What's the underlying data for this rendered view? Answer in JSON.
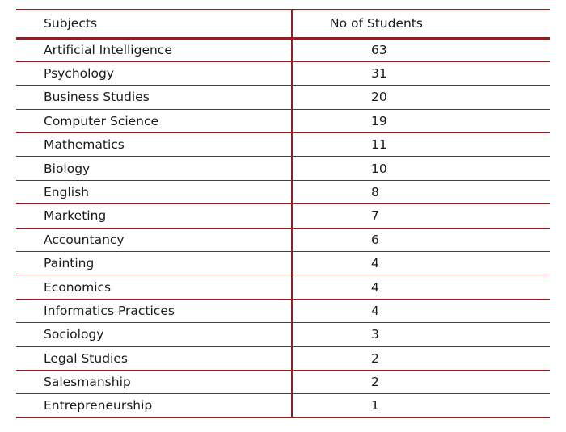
{
  "table": {
    "headers": [
      "Subjects",
      "No of Students"
    ],
    "rows": [
      {
        "subject": "Artificial Intelligence",
        "students": "63"
      },
      {
        "subject": "Psychology",
        "students": "31"
      },
      {
        "subject": "Business Studies",
        "students": "20"
      },
      {
        "subject": "Computer Science",
        "students": "19"
      },
      {
        "subject": "Mathematics",
        "students": "11"
      },
      {
        "subject": "Biology",
        "students": "10"
      },
      {
        "subject": "English",
        "students": "8"
      },
      {
        "subject": "Marketing",
        "students": "7"
      },
      {
        "subject": "Accountancy",
        "students": "6"
      },
      {
        "subject": "Painting",
        "students": "4"
      },
      {
        "subject": "Economics",
        "students": "4"
      },
      {
        "subject": "Informatics Practices",
        "students": "4"
      },
      {
        "subject": "Sociology",
        "students": "3"
      },
      {
        "subject": "Legal Studies",
        "students": "2"
      },
      {
        "subject": "Salesmanship",
        "students": "2"
      },
      {
        "subject": "Entrepreneurship",
        "students": "1"
      }
    ]
  },
  "colors": {
    "rule": "#8a1f24",
    "text": "#1a1a1a"
  }
}
